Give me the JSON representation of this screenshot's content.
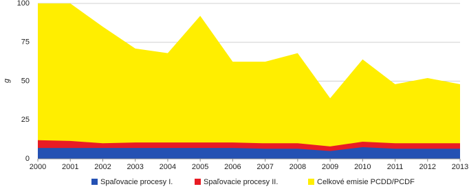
{
  "chart_data": {
    "type": "area",
    "stacked": false,
    "y_label": "g",
    "x": [
      2000,
      2001,
      2002,
      2003,
      2004,
      2005,
      2006,
      2007,
      2008,
      2009,
      2010,
      2011,
      2012,
      2013
    ],
    "xlim": [
      2000,
      2013
    ],
    "xticks": [
      2000,
      2001,
      2002,
      2003,
      2004,
      2005,
      2006,
      2007,
      2008,
      2009,
      2010,
      2011,
      2012,
      2013
    ],
    "ylim": [
      0,
      100
    ],
    "yticks": [
      0,
      25,
      50,
      75,
      100
    ],
    "grid": true,
    "legend": "bottom",
    "series": [
      {
        "name": "Celkové emisie PCDD/PCDF",
        "color": "#ffee00",
        "values": [
          100,
          100,
          85,
          71,
          68,
          92,
          62.5,
          62.5,
          68,
          39,
          64,
          48,
          52,
          48
        ]
      },
      {
        "name": "Spaľovacie procesy II.",
        "color": "#e81c24",
        "values": [
          12,
          11.5,
          10,
          10.5,
          10.5,
          10.5,
          10.5,
          10,
          10,
          8,
          11,
          10,
          10,
          10
        ]
      },
      {
        "name": "Spaľovacie procesy I.",
        "color": "#2451b3",
        "values": [
          7,
          7,
          7,
          7,
          7,
          7,
          7,
          6.5,
          6.5,
          5,
          7.5,
          6.5,
          6.5,
          6.5
        ]
      }
    ]
  }
}
